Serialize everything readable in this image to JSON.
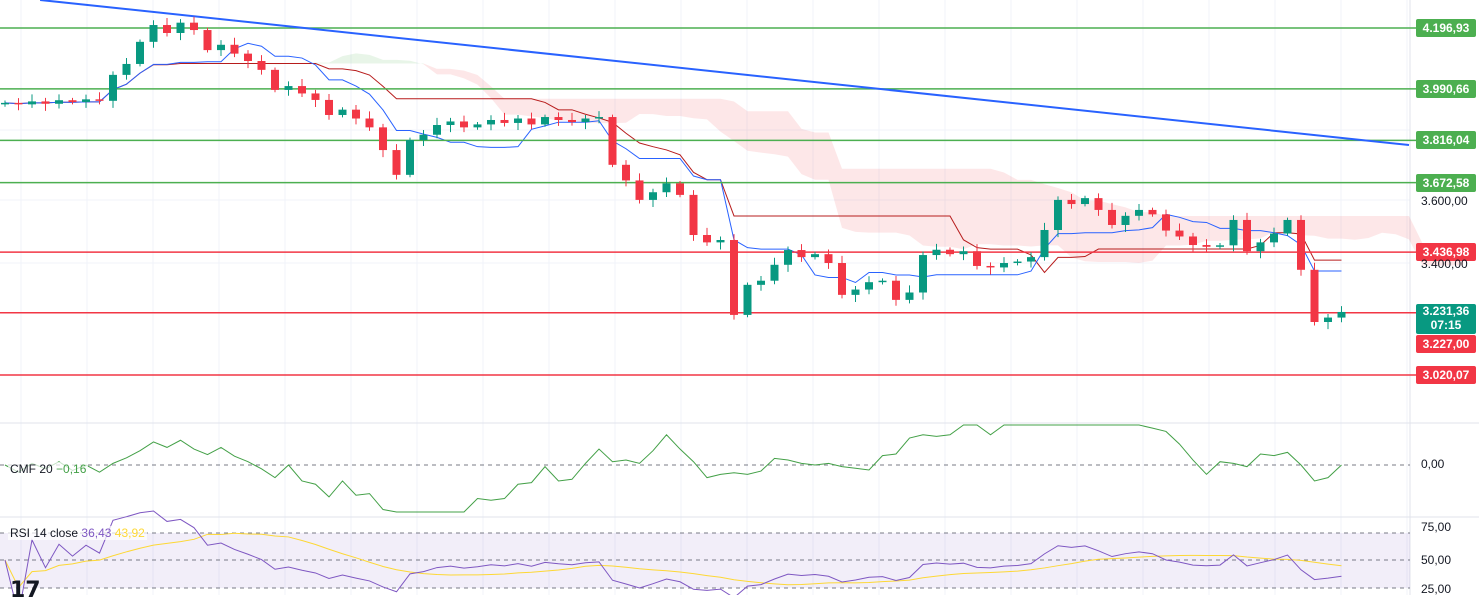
{
  "chart_data": {
    "type": "candlestick",
    "price_range": [
      2990,
      4290
    ],
    "closes": [
      3943,
      3938,
      3948,
      3940,
      3952,
      3946,
      3955,
      3950,
      4038,
      4075,
      4150,
      4207,
      4180,
      4215,
      4190,
      4122,
      4140,
      4110,
      4085,
      4055,
      3987,
      4000,
      3975,
      3953,
      3902,
      3920,
      3890,
      3860,
      3783,
      3699,
      3817,
      3835,
      3868,
      3880,
      3860,
      3870,
      3885,
      3875,
      3890,
      3870,
      3895,
      3885,
      3878,
      3890,
      3895,
      3733,
      3680,
      3614,
      3640,
      3670,
      3631,
      3495,
      3470,
      3478,
      3224,
      3326,
      3340,
      3394,
      3444,
      3420,
      3430,
      3400,
      3292,
      3310,
      3335,
      3340,
      3275,
      3300,
      3427,
      3445,
      3430,
      3440,
      3390,
      3385,
      3400,
      3405,
      3420,
      3512,
      3614,
      3600,
      3620,
      3580,
      3529,
      3560,
      3580,
      3565,
      3510,
      3490,
      3461,
      3455,
      3460,
      3546,
      3440,
      3470,
      3500,
      3546,
      3377,
      3200,
      3215,
      3234
    ],
    "levels": [
      {
        "value": 4196.93,
        "label": "4.196,93",
        "color": "#4caf50"
      },
      {
        "value": 3990.66,
        "label": "3.990,66",
        "color": "#4caf50"
      },
      {
        "value": 3816.04,
        "label": "3.816,04",
        "color": "#4caf50"
      },
      {
        "value": 3672.58,
        "label": "3.672,58",
        "color": "#4caf50"
      },
      {
        "value": 3436.98,
        "label": "3.436,98",
        "color": "#f23645"
      },
      {
        "value": 3231.36,
        "label": "",
        "color": "#f23645"
      },
      {
        "value": 3020.07,
        "label": "3.020,07",
        "color": "#f23645"
      }
    ],
    "trendline": {
      "from": [
        2.6,
        4292
      ],
      "to": [
        104,
        3800
      ],
      "color": "#2962ff"
    },
    "axis_ticks": [
      {
        "value": 3600,
        "label": "3.600,00"
      },
      {
        "value": 3400,
        "label": "3.400,00"
      }
    ],
    "current_price": {
      "label": "3.231,36",
      "countdown": "07:15",
      "color": "#089981"
    },
    "last_label": {
      "label": "3.227,00",
      "color": "#f23645"
    },
    "cmf": {
      "title": "CMF 20",
      "value": "−0,16",
      "zero_label": "0,00"
    },
    "rsi": {
      "title": "RSI 14 close",
      "value": "36,43",
      "ma_value": "43,92",
      "ticks": [
        "75,00",
        "50,00",
        "25,00"
      ]
    },
    "colors": {
      "up": "#089981",
      "down": "#f23645",
      "tenkan": "#2962ff",
      "kijun": "#b71c1c",
      "cmf": "#43a047",
      "rsi": "#7e57c2",
      "rsi_ma": "#fdd835"
    }
  }
}
